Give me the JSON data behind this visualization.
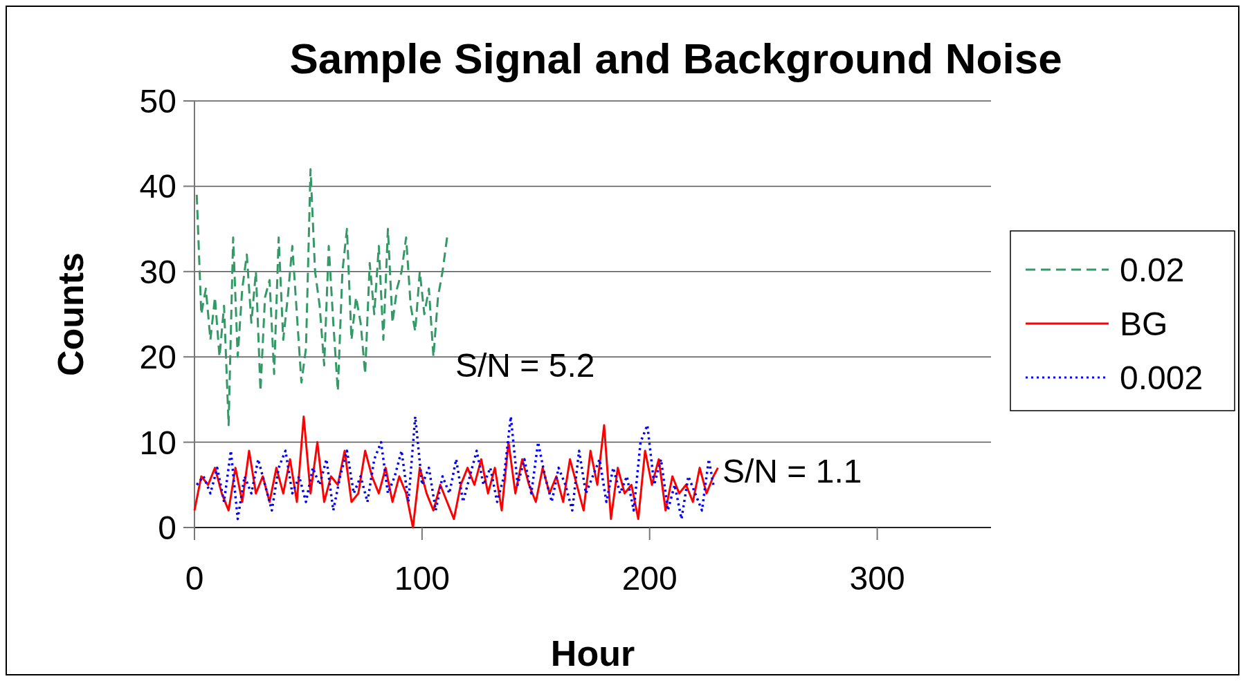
{
  "chart_data": {
    "type": "line",
    "title": "Sample Signal and Background Noise",
    "xlabel": "Hour",
    "ylabel": "Counts",
    "xlim": [
      0,
      350
    ],
    "xticks": [
      0,
      100,
      200,
      300
    ],
    "ylim": [
      0,
      50
    ],
    "yticks": [
      0,
      10,
      20,
      30,
      40,
      50
    ],
    "grid": "y",
    "legend": "right",
    "annotations": [
      "S/N = 5.2",
      "S/N = 1.1"
    ],
    "series": [
      {
        "name": "0.02",
        "color": "#339966",
        "line_style": "dashed",
        "x": [
          1,
          3,
          5,
          7,
          9,
          11,
          13,
          15,
          17,
          19,
          21,
          23,
          25,
          27,
          29,
          31,
          33,
          35,
          37,
          39,
          41,
          43,
          45,
          47,
          49,
          51,
          53,
          55,
          57,
          59,
          61,
          63,
          65,
          67,
          69,
          71,
          73,
          75,
          77,
          79,
          81,
          83,
          85,
          87,
          89,
          91,
          93,
          95,
          97,
          99,
          101,
          103,
          105,
          107,
          109,
          111
        ],
        "values": [
          39,
          25,
          28,
          22,
          27,
          20,
          26,
          12,
          34,
          20,
          28,
          32,
          24,
          30,
          16,
          27,
          29,
          18,
          34,
          22,
          27,
          33,
          25,
          17,
          21,
          42,
          30,
          26,
          19,
          33,
          24,
          16,
          30,
          35,
          22,
          27,
          24,
          18,
          31,
          25,
          33,
          22,
          35,
          24,
          28,
          30,
          34,
          26,
          23,
          30,
          25,
          28,
          20,
          27,
          30,
          34
        ]
      },
      {
        "name": "BG",
        "color": "#ff0000",
        "line_style": "solid",
        "x": [
          0,
          3,
          6,
          9,
          12,
          15,
          18,
          21,
          24,
          27,
          30,
          33,
          36,
          39,
          42,
          45,
          48,
          51,
          54,
          57,
          60,
          63,
          66,
          69,
          72,
          75,
          78,
          81,
          84,
          87,
          90,
          93,
          96,
          99,
          102,
          105,
          108,
          111,
          114,
          117,
          120,
          123,
          126,
          129,
          132,
          135,
          138,
          141,
          144,
          147,
          150,
          153,
          156,
          159,
          162,
          165,
          168,
          171,
          174,
          177,
          180,
          183,
          186,
          189,
          192,
          195,
          198,
          201,
          204,
          207,
          210,
          213,
          216,
          219,
          222,
          225,
          228,
          230
        ],
        "values": [
          2,
          6,
          5,
          7,
          4,
          2,
          7,
          3,
          9,
          4,
          6,
          3,
          7,
          4,
          8,
          3,
          13,
          4,
          10,
          3,
          6,
          5,
          9,
          3,
          4,
          9,
          6,
          4,
          7,
          3,
          6,
          4,
          0,
          7,
          4,
          2,
          5,
          3,
          1,
          5,
          7,
          5,
          8,
          4,
          7,
          2,
          10,
          4,
          8,
          5,
          3,
          7,
          4,
          6,
          3,
          8,
          5,
          2,
          9,
          5,
          12,
          1,
          7,
          4,
          5,
          1,
          9,
          5,
          8,
          2,
          6,
          4,
          5,
          3,
          7,
          4,
          6,
          7
        ]
      },
      {
        "name": "0.002",
        "color": "#0000ff",
        "line_style": "dotted",
        "x": [
          1,
          4,
          7,
          10,
          13,
          16,
          19,
          22,
          25,
          28,
          31,
          34,
          37,
          40,
          43,
          46,
          49,
          52,
          55,
          58,
          61,
          64,
          67,
          70,
          73,
          76,
          79,
          82,
          85,
          88,
          91,
          94,
          97,
          100,
          103,
          106,
          109,
          112,
          115,
          118,
          121,
          124,
          127,
          130,
          133,
          136,
          139,
          142,
          145,
          148,
          151,
          154,
          157,
          160,
          163,
          166,
          169,
          172,
          175,
          178,
          181,
          184,
          187,
          190,
          193,
          196,
          199,
          202,
          205,
          208,
          211,
          214,
          217,
          220,
          223,
          226,
          228
        ],
        "values": [
          5,
          6,
          4,
          7,
          3,
          9,
          1,
          6,
          4,
          8,
          5,
          2,
          7,
          9,
          4,
          6,
          3,
          7,
          5,
          8,
          2,
          6,
          9,
          4,
          6,
          3,
          8,
          10,
          4,
          6,
          9,
          3,
          13,
          5,
          7,
          2,
          6,
          4,
          8,
          3,
          6,
          9,
          5,
          7,
          3,
          6,
          13,
          5,
          8,
          4,
          10,
          6,
          3,
          7,
          5,
          2,
          9,
          4,
          6,
          8,
          3,
          7,
          4,
          6,
          2,
          10,
          12,
          5,
          8,
          2,
          5,
          1,
          6,
          4,
          2,
          8,
          5
        ]
      }
    ]
  }
}
